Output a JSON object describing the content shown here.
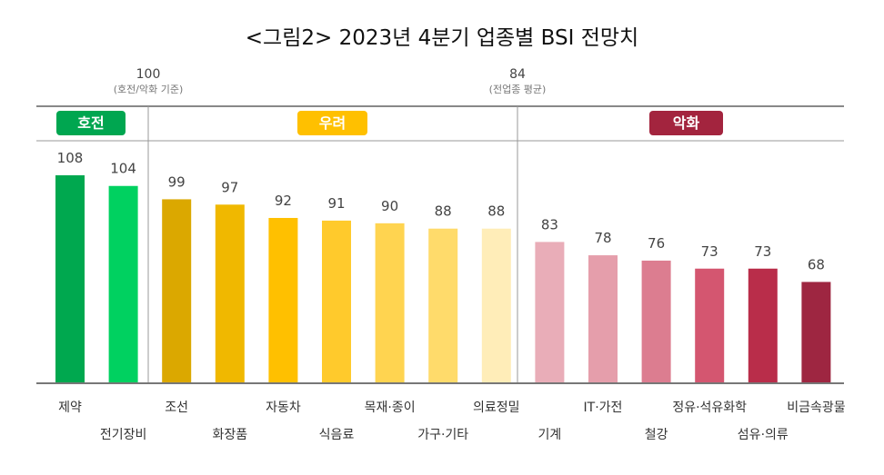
{
  "title": "<그림2> 2023년 4분기 업종별 BSI 전망치",
  "references": [
    {
      "value": "100",
      "note": "(호전/악화 기준)"
    },
    {
      "value": "84",
      "note": "(전업종 평균)"
    }
  ],
  "groups": [
    {
      "label": "호전",
      "color": "#00a650"
    },
    {
      "label": "우려",
      "color": "#ffc000"
    },
    {
      "label": "악화",
      "color": "#a3243e"
    }
  ],
  "chart_data": {
    "type": "bar",
    "title": "<그림2> 2023년 4분기 업종별 BSI 전망치",
    "categories": [
      "제약",
      "전기장비",
      "조선",
      "화장품",
      "자동차",
      "식음료",
      "목재·종이",
      "가구·기타",
      "의료정밀",
      "기계",
      "IT·가전",
      "철강",
      "정유·석유화학",
      "섬유·의류",
      "비금속광물"
    ],
    "values": [
      108,
      104,
      99,
      97,
      92,
      91,
      90,
      88,
      88,
      83,
      78,
      76,
      73,
      73,
      68
    ],
    "group_of": [
      "호전",
      "호전",
      "우려",
      "우려",
      "우려",
      "우려",
      "우려",
      "우려",
      "우려",
      "악화",
      "악화",
      "악화",
      "악화",
      "악화",
      "악화"
    ],
    "colors": [
      "#00a84f",
      "#00d160",
      "#dba800",
      "#f0b800",
      "#ffc000",
      "#ffca2c",
      "#ffd450",
      "#ffdb6b",
      "#ffedb8",
      "#e9adb8",
      "#e59eab",
      "#dc7d90",
      "#d45670",
      "#b92d4a",
      "#9e2641"
    ],
    "ylim": [
      30,
      115
    ],
    "grid": false,
    "xlabel": "",
    "ylabel": ""
  }
}
